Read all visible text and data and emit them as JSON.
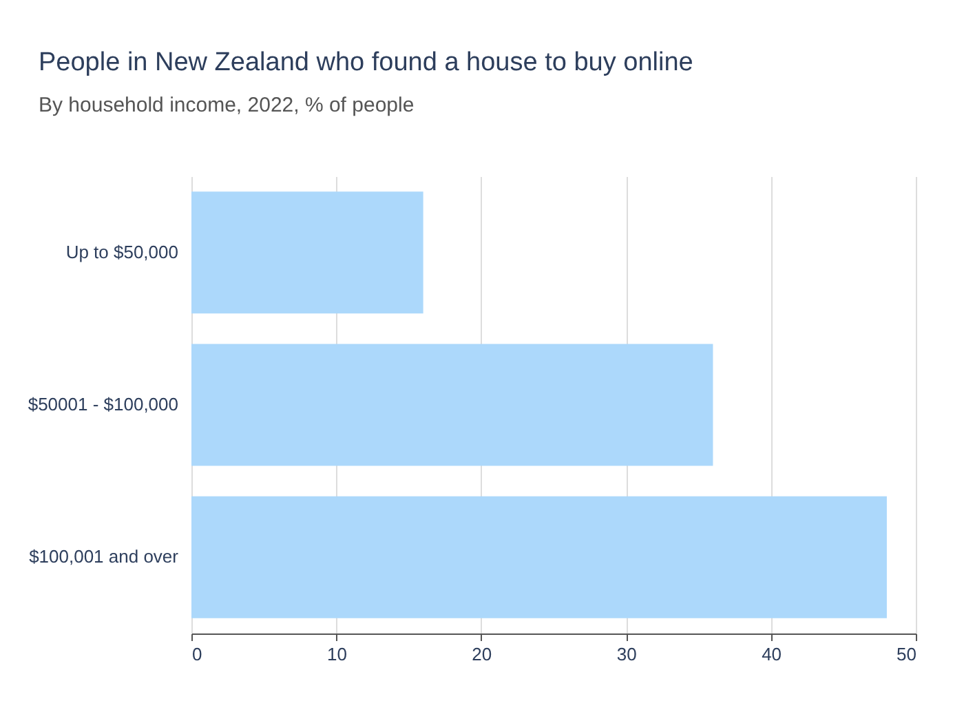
{
  "chart_data": {
    "type": "bar",
    "orientation": "horizontal",
    "title": "People in New Zealand who found a house to buy online",
    "subtitle": "By household income, 2022, % of people",
    "categories": [
      "Up to $50,000",
      "$50001 - $100,000",
      "$100,001 and over"
    ],
    "values": [
      16,
      36,
      48
    ],
    "color": "#acd8fb",
    "xlim": [
      0,
      50
    ],
    "xticks": [
      0,
      10,
      20,
      30,
      40,
      50
    ],
    "grid": "x"
  }
}
